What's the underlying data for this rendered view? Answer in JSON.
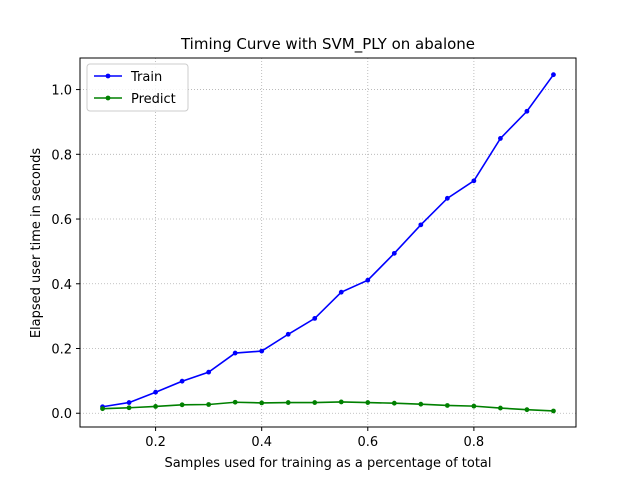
{
  "chart_data": {
    "type": "line",
    "title": "Timing Curve with SVM_PLY on abalone",
    "xlabel": "Samples used for training as a percentage of total",
    "ylabel": "Elapsed user time in seconds",
    "xlim": [
      0.0575,
      0.9925
    ],
    "ylim": [
      -0.0425,
      1.0975
    ],
    "xticks": [
      0.2,
      0.4,
      0.6,
      0.8
    ],
    "xtick_labels": [
      "0.2",
      "0.4",
      "0.6",
      "0.8"
    ],
    "yticks": [
      0.0,
      0.2,
      0.4,
      0.6,
      0.8,
      1.0
    ],
    "ytick_labels": [
      "0.0",
      "0.2",
      "0.4",
      "0.6",
      "0.8",
      "1.0"
    ],
    "grid": true,
    "legend_position": "top-left",
    "x": [
      0.1,
      0.15,
      0.2,
      0.25,
      0.3,
      0.35,
      0.4,
      0.45,
      0.5,
      0.55,
      0.6,
      0.65,
      0.7,
      0.75,
      0.8,
      0.85,
      0.9,
      0.95
    ],
    "series": [
      {
        "name": "Train",
        "color": "#0000ff",
        "values": [
          0.02,
          0.033,
          0.065,
          0.099,
          0.127,
          0.186,
          0.192,
          0.244,
          0.293,
          0.374,
          0.411,
          0.494,
          0.582,
          0.664,
          0.718,
          0.849,
          0.933,
          1.046
        ]
      },
      {
        "name": "Predict",
        "color": "#008000",
        "values": [
          0.014,
          0.017,
          0.021,
          0.026,
          0.027,
          0.034,
          0.032,
          0.033,
          0.033,
          0.035,
          0.033,
          0.031,
          0.028,
          0.024,
          0.022,
          0.016,
          0.011,
          0.007
        ]
      }
    ]
  }
}
